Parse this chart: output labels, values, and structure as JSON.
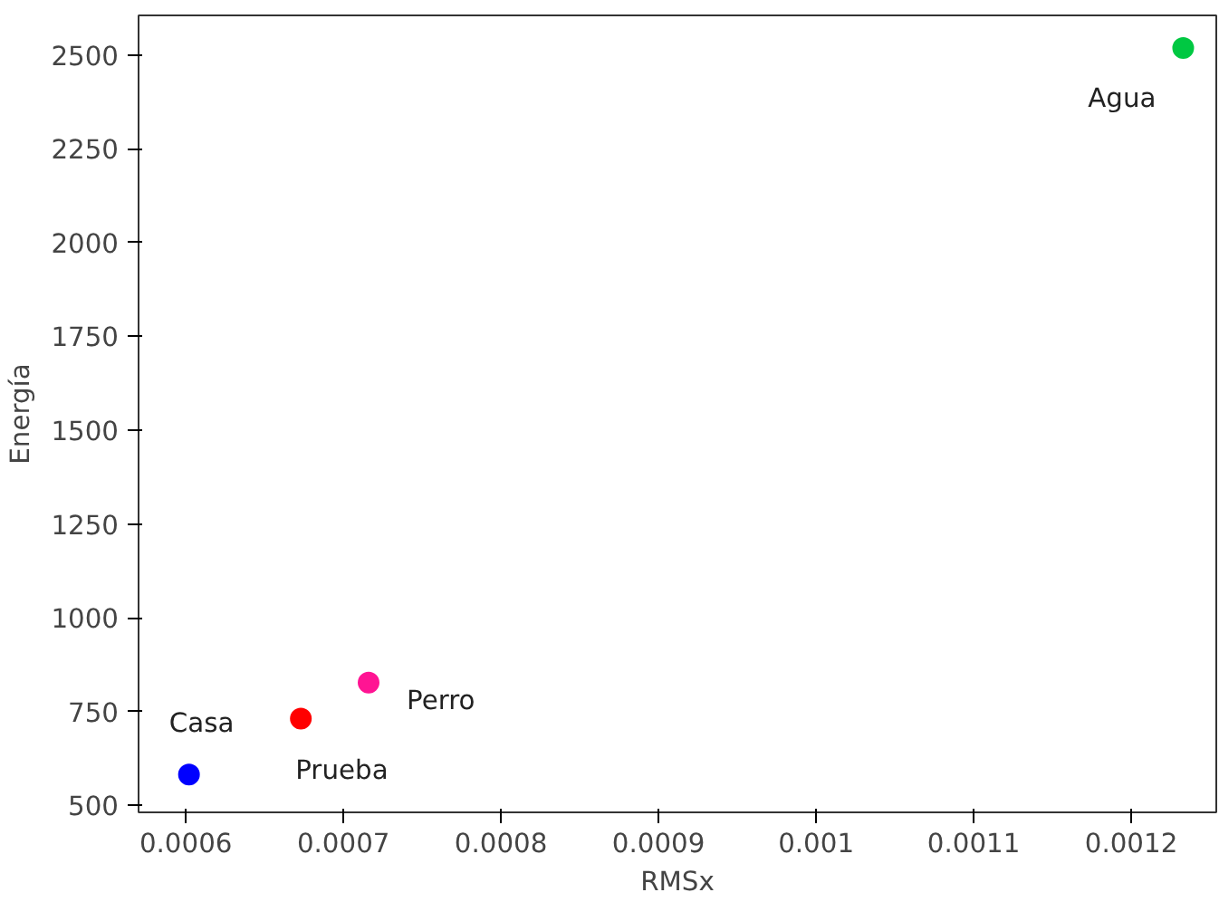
{
  "chart_data": {
    "type": "scatter",
    "xlabel": "RMSx",
    "ylabel": "Energía",
    "xlim": [
      0.00057,
      0.001254
    ],
    "ylim": [
      481,
      2606
    ],
    "xticks": [
      0.0006,
      0.0007,
      0.0008,
      0.0009,
      0.001,
      0.0011,
      0.0012
    ],
    "yticks": [
      500,
      750,
      1000,
      1250,
      1500,
      1750,
      2000,
      2250,
      2500
    ],
    "grid": false,
    "marker": "circle",
    "series": [
      {
        "name": "Casa",
        "color": "#0000ff",
        "x": [
          0.000602
        ],
        "values": [
          582
        ]
      },
      {
        "name": "Prueba",
        "color": "#ff0000",
        "x": [
          0.000673
        ],
        "values": [
          731
        ]
      },
      {
        "name": "Perro",
        "color": "#ff1493",
        "x": [
          0.000716
        ],
        "values": [
          827
        ]
      },
      {
        "name": "Agua",
        "color": "#00c842",
        "x": [
          0.001233
        ],
        "values": [
          2519
        ]
      }
    ]
  }
}
